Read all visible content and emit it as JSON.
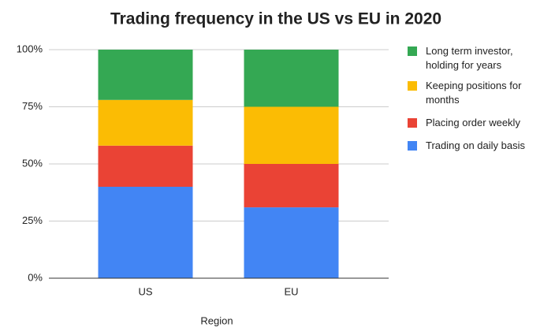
{
  "chart_data": {
    "type": "stacked_bar",
    "title": "Trading frequency in the US vs EU in 2020",
    "x_label": "Region",
    "categories": [
      "US",
      "EU"
    ],
    "series": [
      {
        "name": "Trading on daily basis",
        "color": "#4285f4",
        "values": [
          40,
          31
        ]
      },
      {
        "name": "Placing order weekly",
        "color": "#ea4335",
        "values": [
          18,
          19
        ]
      },
      {
        "name": "Keeping positions for months",
        "color": "#fbbc04",
        "values": [
          20,
          25
        ]
      },
      {
        "name": "Long term investor, holding for years",
        "color": "#34a853",
        "values": [
          22,
          25
        ]
      }
    ],
    "ylim": [
      0,
      100
    ],
    "yticks": [
      {
        "value": 0,
        "label": "0%"
      },
      {
        "value": 25,
        "label": "25%"
      },
      {
        "value": 50,
        "label": "50%"
      },
      {
        "value": 75,
        "label": "75%"
      },
      {
        "value": 100,
        "label": "100%"
      }
    ],
    "grid": true,
    "legend": "right"
  }
}
